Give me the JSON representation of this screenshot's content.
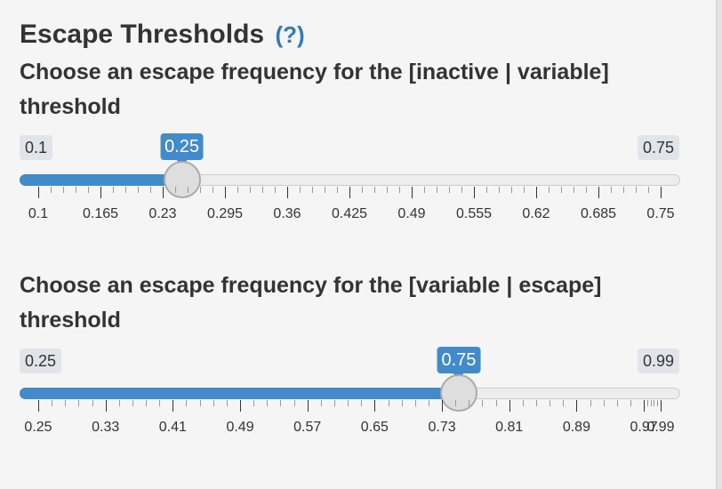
{
  "section": {
    "title": "Escape Thresholds",
    "help_link": "(?)"
  },
  "sliders": [
    {
      "label": "Choose an escape frequency for the [inactive | variable] threshold",
      "min": 0.1,
      "max": 0.75,
      "value": 0.25,
      "min_label": "0.1",
      "max_label": "0.75",
      "value_label": "0.25",
      "grid_labels": [
        "0.1",
        "0.165",
        "0.23",
        "0.295",
        "0.36",
        "0.425",
        "0.49",
        "0.555",
        "0.62",
        "0.685",
        "0.75"
      ]
    },
    {
      "label": "Choose an escape frequency for the [variable | escape] threshold",
      "min": 0.25,
      "max": 0.99,
      "value": 0.75,
      "min_label": "0.25",
      "max_label": "0.99",
      "value_label": "0.75",
      "grid_labels": [
        "0.25",
        "0.33",
        "0.41",
        "0.49",
        "0.57",
        "0.65",
        "0.73",
        "0.81",
        "0.89",
        "0.97",
        "0.99"
      ],
      "grid_values": [
        0.25,
        0.33,
        0.41,
        0.49,
        0.57,
        0.65,
        0.73,
        0.81,
        0.89,
        0.97,
        0.99
      ]
    }
  ],
  "colors": {
    "accent": "#428bca",
    "help": "#337ab7"
  }
}
